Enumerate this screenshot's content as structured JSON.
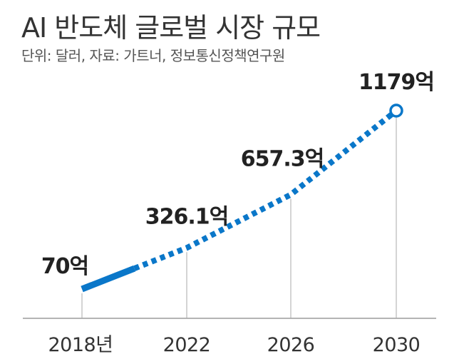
{
  "header": {
    "title": "AI 반도체 글로벌 시장 규모",
    "subtitle": "단위: 달러, 자료: 가트너, 정보통신정책연구원"
  },
  "chart_data": {
    "type": "line",
    "title": "AI 반도체 글로벌 시장 규모",
    "x": [
      2018,
      2022,
      2026,
      2030
    ],
    "tick_labels": [
      "2018년",
      "2022",
      "2026",
      "2030"
    ],
    "series": [
      {
        "values": [
          70,
          326.1,
          657.3,
          1179
        ]
      }
    ],
    "data_labels": [
      "70억",
      "326.1억",
      "657.3억",
      "1179억"
    ],
    "unit": "억 달러",
    "line_style": {
      "actual_until": 2020,
      "after": "dotted"
    },
    "colors": {
      "line": "#0a77c9",
      "axis": "#888888",
      "guide": "#aaaaaa"
    },
    "grid": false,
    "legend": "none"
  }
}
